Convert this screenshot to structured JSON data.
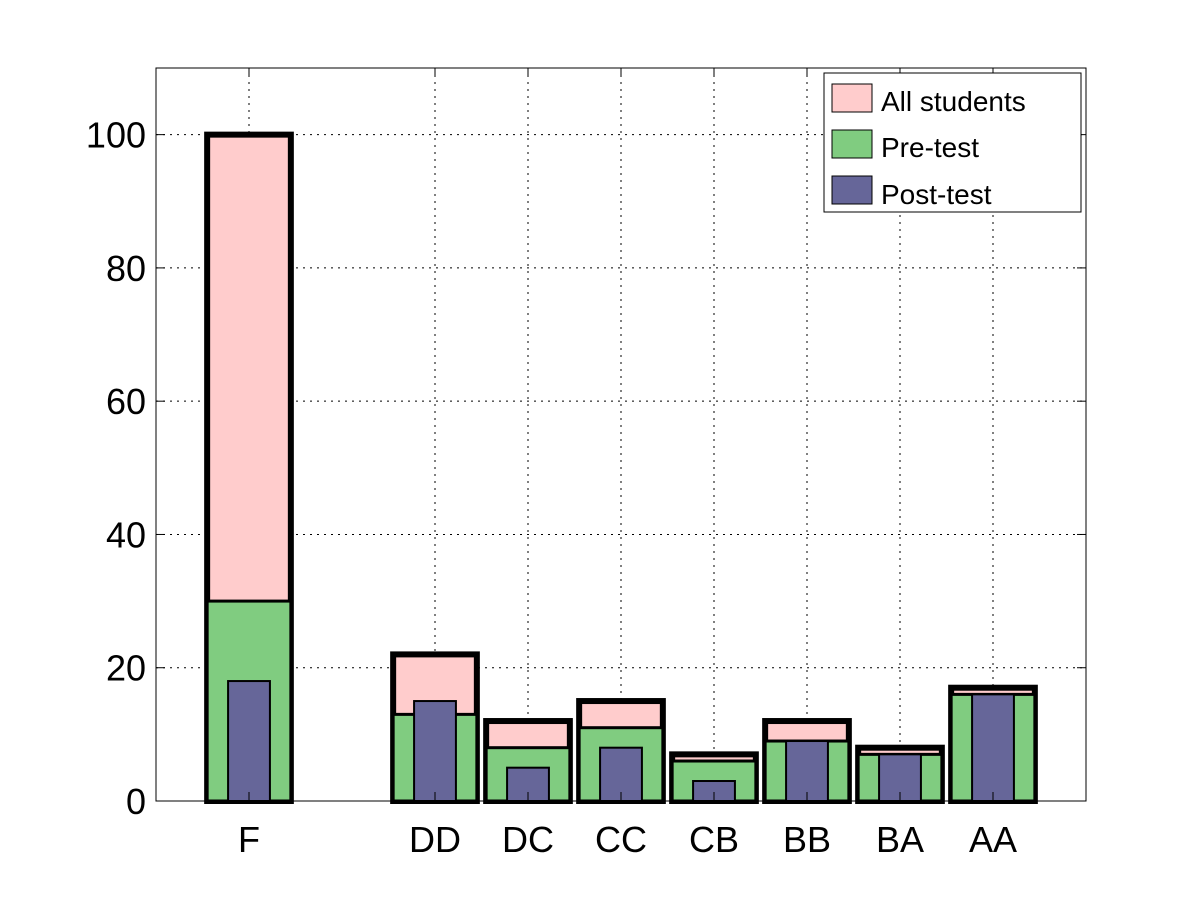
{
  "chart_data": {
    "type": "bar",
    "title": "",
    "xlabel": "",
    "ylabel": "",
    "ylim": [
      0,
      110
    ],
    "yticks": [
      0,
      20,
      40,
      60,
      80,
      100
    ],
    "x": [
      1,
      3,
      4,
      5,
      6,
      7,
      8,
      9
    ],
    "xlim": [
      0,
      10
    ],
    "categories": [
      "F",
      "DD",
      "DC",
      "CC",
      "CB",
      "BB",
      "BA",
      "AA"
    ],
    "grid": true,
    "legend_position": "top-right",
    "series": [
      {
        "name": "All students",
        "color": "#ffcccc",
        "values": [
          100,
          22,
          12,
          15,
          7,
          12,
          8,
          17
        ]
      },
      {
        "name": "Pre-test",
        "color": "#80cc80",
        "values": [
          30,
          13,
          8,
          11,
          6,
          9,
          7,
          16
        ]
      },
      {
        "name": "Post-test",
        "color": "#666699",
        "values": [
          18,
          15,
          5,
          8,
          3,
          9,
          7,
          16
        ]
      }
    ]
  }
}
